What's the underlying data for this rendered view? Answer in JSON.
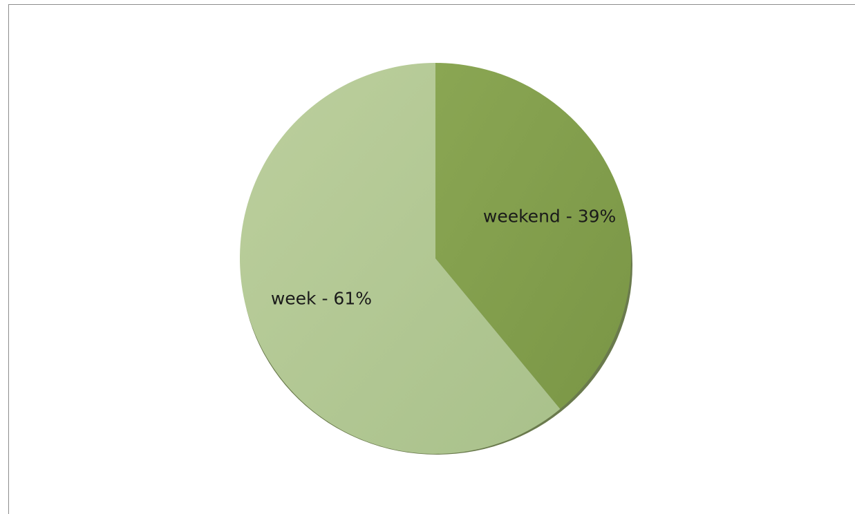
{
  "chart_data": {
    "type": "pie",
    "title": "",
    "slices": [
      {
        "name": "weekend",
        "value": 39,
        "label": "weekend - 39%",
        "color": "#84a04e"
      },
      {
        "name": "week",
        "value": 61,
        "label": "week - 61%",
        "color": "#b3c996"
      }
    ],
    "start_angle_deg": 0,
    "direction": "clockwise",
    "shadow": true,
    "legend": "none"
  }
}
